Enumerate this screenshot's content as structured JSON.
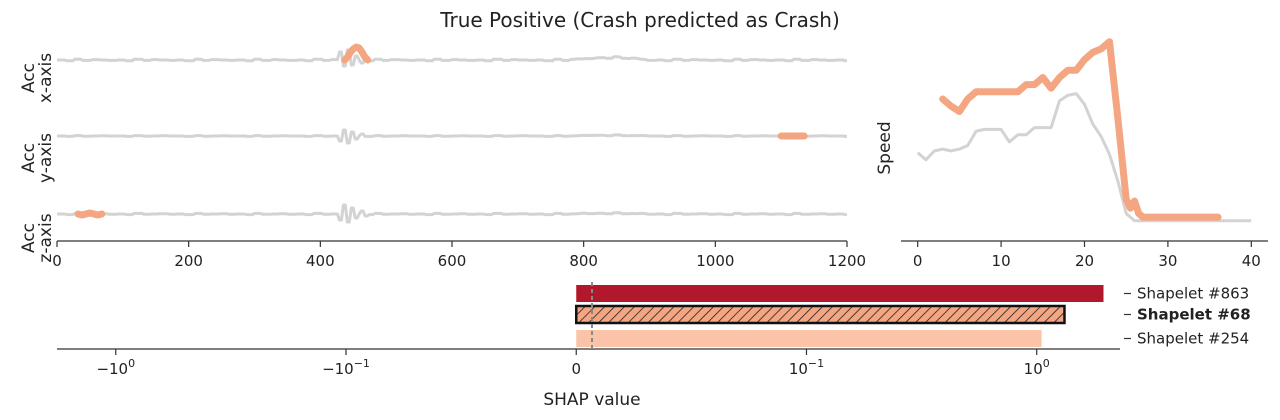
{
  "title": "True Positive (Crash predicted as Crash)",
  "colors": {
    "signal": "#d3d3d3",
    "highlight": "#f4a582",
    "bar_dark": "#b2182b",
    "bar_mid": "#f4a582",
    "bar_light": "#fbc3a8",
    "axis": "#333333"
  },
  "chart_data": [
    {
      "id": "acc-signals",
      "type": "line",
      "xlim": [
        0,
        1200
      ],
      "xticks": [
        0,
        200,
        400,
        600,
        800,
        1000,
        1200
      ],
      "series": [
        {
          "name": "Acc x-axis",
          "ylabel_line1": "Acc",
          "ylabel_line2": "x-axis",
          "noise": [
            0,
            1.0,
            -1.0,
            0.5,
            -0.5,
            0,
            0.5
          ],
          "bursts": [
            [
              428,
              434,
              -8
            ],
            [
              434,
              440,
              6
            ],
            [
              440,
              446,
              -10
            ],
            [
              446,
              452,
              5
            ],
            [
              452,
              458,
              -4
            ],
            [
              460,
              466,
              3
            ],
            [
              468,
              474,
              -2
            ]
          ],
          "highlight_range": [
            437,
            472
          ],
          "highlight_shape": [
            0,
            -3,
            -8,
            -11,
            -13,
            -12,
            -8,
            -3,
            0
          ]
        },
        {
          "name": "Acc y-axis",
          "ylabel_line1": "Acc",
          "ylabel_line2": "y-axis",
          "noise": [
            0,
            0.5,
            -0.5,
            0.3,
            0,
            -0.3,
            0
          ],
          "bursts": [
            [
              428,
              434,
              5
            ],
            [
              434,
              440,
              -6
            ],
            [
              440,
              446,
              7
            ],
            [
              446,
              452,
              -4
            ],
            [
              452,
              458,
              3
            ],
            [
              460,
              466,
              -2
            ]
          ],
          "highlight_range": [
            1100,
            1135
          ],
          "highlight_shape": [
            0,
            0,
            0,
            0,
            0
          ]
        },
        {
          "name": "Acc z-axis",
          "ylabel_line1": "Acc",
          "ylabel_line2": "z-axis",
          "noise": [
            0,
            0.7,
            -0.7,
            0.4,
            0,
            -0.4,
            0.2
          ],
          "bursts": [
            [
              428,
              434,
              6
            ],
            [
              434,
              440,
              -9
            ],
            [
              440,
              446,
              8
            ],
            [
              446,
              452,
              -6
            ],
            [
              452,
              458,
              4
            ],
            [
              460,
              466,
              -3
            ],
            [
              468,
              474,
              2
            ]
          ],
          "highlight_range": [
            32,
            68
          ],
          "highlight_shape": [
            0,
            1,
            0,
            -1,
            0,
            1,
            0
          ]
        }
      ]
    },
    {
      "id": "speed",
      "type": "line",
      "ylabel": "Speed",
      "xlim": [
        -2,
        42
      ],
      "ylim": [
        0,
        1
      ],
      "xticks": [
        0,
        10,
        20,
        30,
        40
      ],
      "signal": [
        [
          0,
          0.46
        ],
        [
          1,
          0.42
        ],
        [
          2,
          0.47
        ],
        [
          3,
          0.48
        ],
        [
          4,
          0.47
        ],
        [
          5,
          0.48
        ],
        [
          6,
          0.5
        ],
        [
          7,
          0.58
        ],
        [
          8,
          0.59
        ],
        [
          9,
          0.59
        ],
        [
          10,
          0.59
        ],
        [
          11,
          0.52
        ],
        [
          12,
          0.56
        ],
        [
          13,
          0.56
        ],
        [
          14,
          0.6
        ],
        [
          15,
          0.6
        ],
        [
          16,
          0.6
        ],
        [
          17,
          0.75
        ],
        [
          18,
          0.78
        ],
        [
          19,
          0.79
        ],
        [
          20,
          0.73
        ],
        [
          21,
          0.62
        ],
        [
          22,
          0.55
        ],
        [
          23,
          0.45
        ],
        [
          24,
          0.3
        ],
        [
          25,
          0.12
        ],
        [
          26,
          0.08
        ],
        [
          27,
          0.08
        ],
        [
          30,
          0.08
        ],
        [
          35,
          0.08
        ],
        [
          40,
          0.08
        ]
      ],
      "shapelet": [
        [
          3,
          0.76
        ],
        [
          4,
          0.72
        ],
        [
          5,
          0.69
        ],
        [
          6,
          0.76
        ],
        [
          7,
          0.8
        ],
        [
          8,
          0.8
        ],
        [
          10,
          0.8
        ],
        [
          12,
          0.8
        ],
        [
          13,
          0.84
        ],
        [
          14,
          0.84
        ],
        [
          15,
          0.88
        ],
        [
          16,
          0.82
        ],
        [
          17,
          0.88
        ],
        [
          18,
          0.92
        ],
        [
          19,
          0.92
        ],
        [
          20,
          0.98
        ],
        [
          21,
          1.02
        ],
        [
          22,
          1.04
        ],
        [
          23,
          1.08
        ],
        [
          24,
          0.65
        ],
        [
          25,
          0.2
        ],
        [
          25.5,
          0.15
        ],
        [
          26,
          0.19
        ],
        [
          26.5,
          0.12
        ],
        [
          27,
          0.1
        ],
        [
          30,
          0.1
        ],
        [
          36,
          0.1
        ]
      ]
    },
    {
      "id": "shap-bars",
      "type": "bar",
      "orientation": "horizontal",
      "xlabel": "SHAP value",
      "scale": "symlog",
      "linthresh": 0.1,
      "xlim": [
        -1.8,
        2.3
      ],
      "xticks": [
        -1.0,
        -0.1,
        0,
        0.1,
        1.0
      ],
      "xtick_labels": [
        {
          "base": "−10",
          "exp": "0"
        },
        {
          "base": "−10",
          "exp": "−1"
        },
        {
          "base": "0",
          "exp": ""
        },
        {
          "base": "10",
          "exp": "−1"
        },
        {
          "base": "10",
          "exp": "0"
        }
      ],
      "categories": [
        "Shapelet #863",
        "Shapelet #68",
        "Shapelet #254"
      ],
      "values": [
        1.95,
        1.32,
        1.05
      ],
      "bold_index": 1,
      "hatched_index": 1
    }
  ]
}
